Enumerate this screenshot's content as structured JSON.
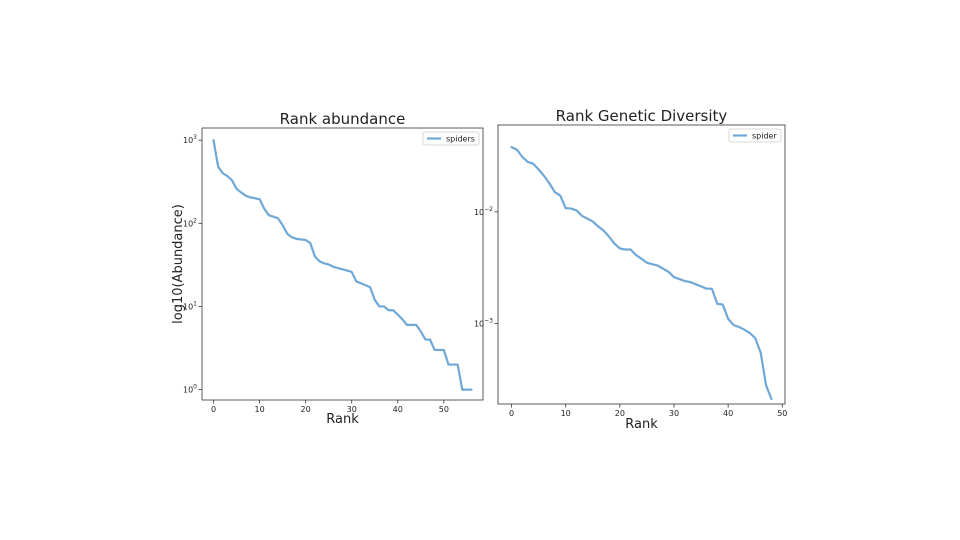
{
  "chart_data": [
    {
      "type": "line",
      "title": "Rank abundance",
      "xlabel": "Rank",
      "ylabel": "log10(Abundance)",
      "xscale": "linear",
      "yscale": "log",
      "xlim": [
        -2.5,
        58.5
      ],
      "ylim": [
        0.75,
        1400
      ],
      "xticks": [
        0,
        10,
        20,
        30,
        40,
        50
      ],
      "xtick_labels": [
        "0",
        "10",
        "20",
        "30",
        "40",
        "50"
      ],
      "yticks": [
        1,
        10,
        100,
        1000
      ],
      "ytick_labels": [
        {
          "base": "10",
          "exp": "0"
        },
        {
          "base": "10",
          "exp": "1"
        },
        {
          "base": "10",
          "exp": "2"
        },
        {
          "base": "10",
          "exp": "3"
        }
      ],
      "grid": false,
      "legend_position": "top-right",
      "color": "#6fa8d6",
      "series": [
        {
          "name": "spiders",
          "x": [
            0,
            1,
            2,
            3,
            4,
            5,
            6,
            7,
            8,
            9,
            10,
            11,
            12,
            13,
            14,
            15,
            16,
            17,
            18,
            19,
            20,
            21,
            22,
            23,
            24,
            25,
            26,
            27,
            28,
            29,
            30,
            31,
            32,
            33,
            34,
            35,
            36,
            37,
            38,
            39,
            40,
            41,
            42,
            43,
            44,
            45,
            46,
            47,
            48,
            49,
            50,
            51,
            52,
            53,
            54,
            55,
            56
          ],
          "values": [
            1000,
            480,
            400,
            370,
            330,
            260,
            235,
            215,
            205,
            200,
            195,
            150,
            125,
            120,
            115,
            95,
            75,
            68,
            65,
            64,
            63,
            58,
            40,
            35,
            33,
            32,
            30,
            29,
            28,
            27,
            26,
            20,
            19,
            18,
            17,
            12,
            10,
            10,
            9,
            9,
            8,
            7,
            6,
            6,
            6,
            5,
            4,
            4,
            3,
            3,
            3,
            2,
            2,
            2,
            1,
            1,
            1
          ]
        }
      ]
    },
    {
      "type": "line",
      "title": "Rank Genetic Diversity",
      "xlabel": "Rank",
      "ylabel": "",
      "xscale": "linear",
      "yscale": "log",
      "xlim": [
        -2.5,
        50.5
      ],
      "ylim": [
        0.00019,
        0.06
      ],
      "xticks": [
        0,
        10,
        20,
        30,
        40,
        50
      ],
      "xtick_labels": [
        "0",
        "10",
        "20",
        "30",
        "40",
        "50"
      ],
      "yticks": [
        0.001,
        0.01
      ],
      "ytick_labels": [
        {
          "base": "10",
          "exp": "−3"
        },
        {
          "base": "10",
          "exp": "−2"
        }
      ],
      "grid": false,
      "legend_position": "top-right",
      "color": "#6fa8d6",
      "series": [
        {
          "name": "spider",
          "x": [
            0,
            1,
            2,
            3,
            4,
            5,
            6,
            7,
            8,
            9,
            10,
            11,
            12,
            13,
            14,
            15,
            16,
            17,
            18,
            19,
            20,
            21,
            22,
            23,
            24,
            25,
            26,
            27,
            28,
            29,
            30,
            31,
            32,
            33,
            34,
            35,
            36,
            37,
            38,
            39,
            40,
            41,
            42,
            43,
            44,
            45,
            46,
            47,
            48
          ],
          "values": [
            0.038,
            0.036,
            0.031,
            0.028,
            0.027,
            0.024,
            0.021,
            0.018,
            0.015,
            0.014,
            0.0108,
            0.0107,
            0.0103,
            0.0092,
            0.0087,
            0.0082,
            0.0074,
            0.0068,
            0.006,
            0.0052,
            0.0047,
            0.0046,
            0.0046,
            0.0041,
            0.0038,
            0.0035,
            0.0034,
            0.0033,
            0.0031,
            0.0029,
            0.0026,
            0.0025,
            0.0024,
            0.00235,
            0.00225,
            0.00215,
            0.00205,
            0.00205,
            0.0015,
            0.00148,
            0.0011,
            0.00097,
            0.00093,
            0.00088,
            0.00082,
            0.00074,
            0.00055,
            0.00028,
            0.00021
          ]
        }
      ]
    }
  ]
}
